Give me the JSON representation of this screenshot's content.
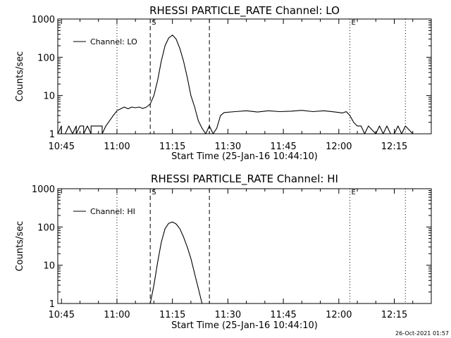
{
  "chart_data": [
    {
      "type": "line",
      "title": "RHESSI PARTICLE_RATE Channel: LO",
      "xlabel": "Start Time (25-Jan-16 10:44:10)",
      "ylabel": "Counts/sec",
      "yscale": "log",
      "xlim": [
        "10:44",
        "12:25"
      ],
      "ylim": [
        1,
        1000
      ],
      "x_ticks": [
        "10:45",
        "11:00",
        "11:15",
        "11:30",
        "11:45",
        "12:00",
        "12:15"
      ],
      "y_ticks": [
        "1",
        "10",
        "100",
        "1000"
      ],
      "legend": {
        "label": "Channel: LO",
        "position": "top-left"
      },
      "markers": [
        {
          "label": "S",
          "time": "11:09",
          "style": "dashed"
        },
        {
          "label": "",
          "time": "11:25",
          "style": "dashed"
        },
        {
          "label": "",
          "time": "11:00",
          "style": "dotted"
        },
        {
          "label": "E",
          "time": "12:03",
          "style": "dotted"
        },
        {
          "label": "",
          "time": "12:18",
          "style": "dotted"
        }
      ],
      "series": [
        {
          "name": "Channel: LO",
          "x": [
            "10:44",
            "10:45",
            "10:45",
            "10:46",
            "10:47",
            "10:48",
            "10:49",
            "10:49",
            "10:50",
            "10:51",
            "10:51",
            "10:52",
            "10:53",
            "10:53",
            "10:54",
            "10:55",
            "10:56",
            "10:56",
            "10:57",
            "10:58",
            "10:59",
            "11:00",
            "11:01",
            "11:02",
            "11:03",
            "11:04",
            "11:05",
            "11:06",
            "11:07",
            "11:08",
            "11:09",
            "11:10",
            "11:11",
            "11:12",
            "11:13",
            "11:14",
            "11:15",
            "11:16",
            "11:17",
            "11:18",
            "11:19",
            "11:20",
            "11:21",
            "11:22",
            "11:23",
            "11:24",
            "11:25",
            "11:26",
            "11:27",
            "11:28",
            "11:29",
            "11:32",
            "11:35",
            "11:38",
            "11:41",
            "11:44",
            "11:47",
            "11:50",
            "11:53",
            "11:56",
            "11:59",
            "12:01",
            "12:02",
            "12:03",
            "12:04",
            "12:05",
            "12:06",
            "12:07",
            "12:08",
            "12:10",
            "12:11",
            "12:12",
            "12:13",
            "12:14",
            "12:15",
            "12:16",
            "12:17",
            "12:18",
            "12:20",
            "12:23"
          ],
          "y": [
            1,
            1.6,
            1,
            1,
            1.6,
            1,
            1.6,
            1,
            1.6,
            1.6,
            1,
            1.6,
            1,
            1.6,
            1.6,
            1.6,
            1.6,
            1,
            1.6,
            2.2,
            3,
            4,
            4.5,
            5,
            4.5,
            5,
            4.8,
            5,
            4.6,
            5,
            6,
            10,
            25,
            80,
            200,
            320,
            380,
            300,
            170,
            80,
            30,
            10,
            5,
            2.2,
            1.4,
            1,
            1.6,
            1,
            1.4,
            3,
            3.6,
            3.8,
            4,
            3.7,
            4,
            3.8,
            3.9,
            4.1,
            3.8,
            4,
            3.7,
            3.5,
            3.8,
            3,
            2,
            1.6,
            1.6,
            1,
            1.6,
            1,
            1.6,
            1,
            1.6,
            1,
            1,
            1.6,
            1,
            1.6,
            1,
            1
          ]
        }
      ]
    },
    {
      "type": "line",
      "title": "RHESSI PARTICLE_RATE Channel: HI",
      "xlabel": "Start Time (25-Jan-16 10:44:10)",
      "ylabel": "Counts/sec",
      "yscale": "log",
      "xlim": [
        "10:44",
        "12:25"
      ],
      "ylim": [
        1,
        1000
      ],
      "x_ticks": [
        "10:45",
        "11:00",
        "11:15",
        "11:30",
        "11:45",
        "12:00",
        "12:15"
      ],
      "y_ticks": [
        "1",
        "10",
        "100",
        "1000"
      ],
      "legend": {
        "label": "Channel: HI",
        "position": "top-left"
      },
      "markers": [
        {
          "label": "S",
          "time": "11:09",
          "style": "dashed"
        },
        {
          "label": "",
          "time": "11:25",
          "style": "dashed"
        },
        {
          "label": "",
          "time": "11:00",
          "style": "dotted"
        },
        {
          "label": "E",
          "time": "12:03",
          "style": "dotted"
        },
        {
          "label": "",
          "time": "12:18",
          "style": "dotted"
        }
      ],
      "series": [
        {
          "name": "Channel: HI",
          "x": [
            "11:09",
            "11:10",
            "11:11",
            "11:12",
            "11:13",
            "11:14",
            "11:15",
            "11:16",
            "11:17",
            "11:18",
            "11:19",
            "11:20",
            "11:21",
            "11:22",
            "11:23"
          ],
          "y": [
            1,
            3,
            12,
            40,
            90,
            125,
            135,
            120,
            90,
            55,
            30,
            15,
            6,
            2.5,
            1
          ]
        }
      ]
    }
  ],
  "footer": {
    "timestamp": "26-Oct-2021 01:57"
  }
}
